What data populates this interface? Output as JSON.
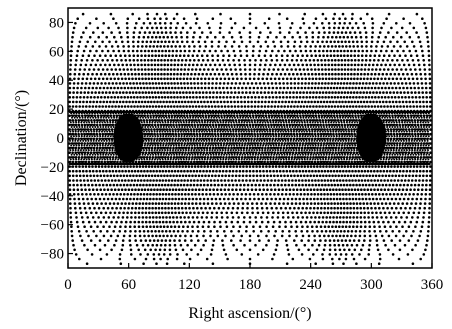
{
  "chart_data": {
    "type": "scatter",
    "title": "",
    "xlabel": "Right ascension/(°)",
    "ylabel": "Declination/(°)",
    "xlim": [
      0,
      360
    ],
    "ylim": [
      -90,
      90
    ],
    "x_ticks": [
      0,
      60,
      120,
      180,
      240,
      300,
      360
    ],
    "y_ticks": [
      80,
      60,
      40,
      20,
      0,
      -20,
      -40,
      -60,
      -80
    ],
    "x_tick_labels": [
      "0",
      "60",
      "120",
      "180",
      "240",
      "300",
      "360"
    ],
    "y_tick_labels": [
      "80",
      "60",
      "40",
      "20",
      "0",
      "−20",
      "−40",
      "−60",
      "−80"
    ],
    "grid": false,
    "legend": "none",
    "marker_color": "#000000",
    "pattern": {
      "description": "dense sky-coverage point grid forming curved meridian patterns; darker dense clusters centered near RA 60 and RA 300 between Dec -20 and 20",
      "dense_band_dec": [
        -18,
        18
      ],
      "dense_cluster_ra": [
        60,
        300
      ]
    }
  }
}
